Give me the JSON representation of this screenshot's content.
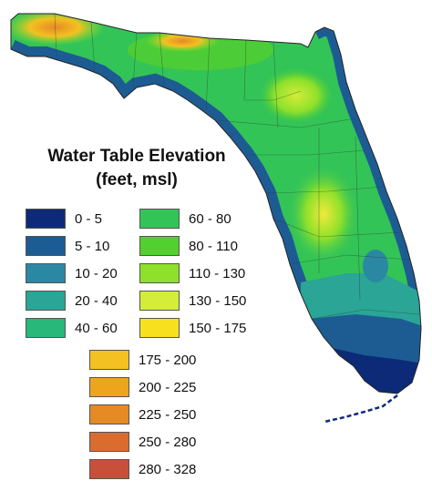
{
  "legend": {
    "title_line1": "Water Table Elevation",
    "title_line2": "(feet, msl)",
    "items": [
      {
        "label": "0 - 5",
        "color": "#0d2a78"
      },
      {
        "label": "5 - 10",
        "color": "#1d5c93"
      },
      {
        "label": "10 - 20",
        "color": "#2b88a3"
      },
      {
        "label": "20 - 40",
        "color": "#2aa596"
      },
      {
        "label": "40 - 60",
        "color": "#27b87a"
      },
      {
        "label": "60 - 80",
        "color": "#33c457"
      },
      {
        "label": "80 - 110",
        "color": "#52d02f"
      },
      {
        "label": "110 - 130",
        "color": "#8ee02b"
      },
      {
        "label": "130 - 150",
        "color": "#d4ec3a"
      },
      {
        "label": "150 - 175",
        "color": "#f7e11f"
      },
      {
        "label": "175 - 200",
        "color": "#f3c121"
      },
      {
        "label": "200 - 225",
        "color": "#eda51e"
      },
      {
        "label": "225 - 250",
        "color": "#e58a25"
      },
      {
        "label": "250 - 280",
        "color": "#d96d30"
      },
      {
        "label": "280 - 328",
        "color": "#c8503b"
      }
    ]
  }
}
